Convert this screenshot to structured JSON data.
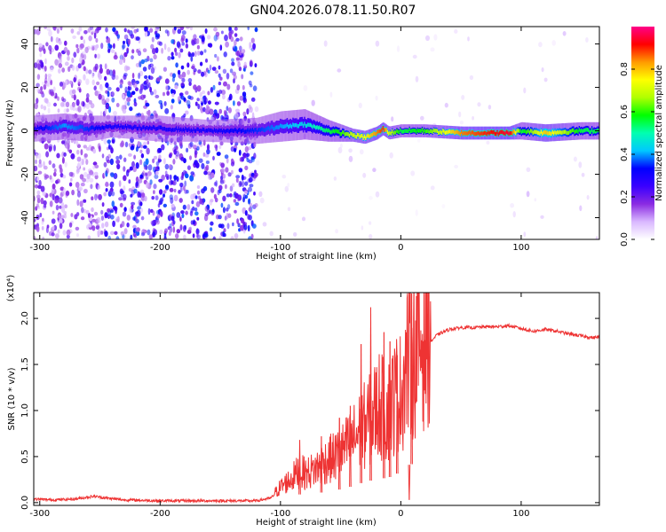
{
  "figure_title": "GN04.2026.078.11.50.R07",
  "chart_data": [
    {
      "type": "heatmap",
      "title": "GN04.2026.078.11.50.R07",
      "xlabel": "Height of straight line (km)",
      "ylabel": "Frequency (Hz)",
      "xlim": [
        -305,
        165
      ],
      "ylim": [
        -50,
        48
      ],
      "xticks": [
        -300,
        -200,
        -100,
        0,
        100
      ],
      "xtick_labels": [
        "-300",
        "-200",
        "-100",
        "0",
        "100"
      ],
      "yticks": [
        -40,
        -20,
        0,
        20,
        40
      ],
      "ytick_labels": [
        "-40",
        "-20",
        "0",
        "20",
        "40"
      ],
      "colorbar": {
        "label": "Normalized spectral amplitude",
        "range": [
          0,
          1
        ],
        "ticks": [
          0.0,
          0.2,
          0.4,
          0.6,
          0.8
        ],
        "tick_labels": [
          "0.0",
          "0.2",
          "0.4",
          "0.6",
          "0.8"
        ],
        "colormap": [
          "#ffffff",
          "#d9b8ff",
          "#8a2be2",
          "#3a00ff",
          "#0000ff",
          "#00c8ff",
          "#00ffb0",
          "#00ff00",
          "#b0ff00",
          "#ffff00",
          "#ff9a00",
          "#ff0000",
          "#ff0088"
        ]
      },
      "regions": [
        {
          "x": [
            -305,
            -245
          ],
          "amplitude": 0.15,
          "character": "sparse broadband noise"
        },
        {
          "x": [
            -245,
            -120
          ],
          "amplitude": 0.25,
          "character": "dense broadband noise"
        },
        {
          "x": [
            -120,
            165
          ],
          "amplitude": 0.05,
          "character": "faint background"
        }
      ],
      "ridge": {
        "name": "",
        "x": [
          -305,
          -280,
          -260,
          -240,
          -200,
          -160,
          -120,
          -100,
          -80,
          -60,
          -50,
          -40,
          -30,
          -20,
          -15,
          -10,
          0,
          20,
          50,
          90,
          100,
          120,
          150,
          165
        ],
        "y": [
          1,
          2,
          1,
          2,
          1,
          0,
          0,
          2,
          3,
          0,
          -1,
          -2,
          -3,
          -1,
          1,
          -1,
          0,
          0,
          -1,
          -1,
          0,
          -1,
          0,
          0
        ],
        "amplitude": [
          0.3,
          0.4,
          0.35,
          0.3,
          0.3,
          0.3,
          0.35,
          0.4,
          0.45,
          0.55,
          0.6,
          0.7,
          0.75,
          0.85,
          0.9,
          0.7,
          0.55,
          0.6,
          0.85,
          0.95,
          0.55,
          0.8,
          0.55,
          0.55
        ],
        "width_hz": [
          6,
          6,
          6,
          5,
          6,
          5,
          6,
          7,
          7,
          5,
          4,
          3,
          3,
          3,
          3,
          3,
          3,
          3,
          3,
          3,
          4,
          4,
          4,
          4
        ]
      }
    },
    {
      "type": "line",
      "xlabel": "Height of straight line (km)",
      "ylabel": "SNR (10 * v/v)",
      "yscale_label": "(x10⁴)",
      "xlim": [
        -305,
        165
      ],
      "ylim": [
        -0.03,
        2.28
      ],
      "xticks": [
        -300,
        -200,
        -100,
        0,
        100
      ],
      "xtick_labels": [
        "-300",
        "-200",
        "-100",
        "0",
        "100"
      ],
      "yticks": [
        0.0,
        0.5,
        1.0,
        1.5,
        2.0
      ],
      "ytick_labels": [
        "0.0",
        "0.5",
        "1.0",
        "1.5",
        "2.0"
      ],
      "color": "#ee3333",
      "series": [
        {
          "x": [
            -305,
            -290,
            -270,
            -255,
            -245,
            -230,
            -200,
            -150,
            -120,
            -108,
            -100,
            -92,
            -85,
            -78,
            -70,
            -62,
            -55,
            -48,
            -40,
            -32,
            -25,
            -18,
            -12,
            -8,
            -4,
            0,
            5,
            10,
            15,
            20,
            25,
            30,
            40,
            50,
            60,
            70,
            80,
            90,
            100,
            110,
            120,
            130,
            140,
            150,
            160,
            165
          ],
          "y": [
            0.04,
            0.03,
            0.04,
            0.07,
            0.05,
            0.03,
            0.02,
            0.02,
            0.02,
            0.05,
            0.15,
            0.22,
            0.3,
            0.28,
            0.33,
            0.4,
            0.44,
            0.5,
            0.6,
            0.72,
            0.8,
            0.95,
            0.85,
            0.95,
            1.05,
            1.05,
            1.35,
            1.4,
            1.5,
            1.62,
            1.75,
            1.82,
            1.88,
            1.9,
            1.9,
            1.91,
            1.91,
            1.92,
            1.89,
            1.86,
            1.88,
            1.86,
            1.83,
            1.81,
            1.79,
            1.8
          ]
        }
      ],
      "spikes": [
        {
          "x": -84,
          "y": 0.68
        },
        {
          "x": -66,
          "y": 0.72
        },
        {
          "x": -51,
          "y": 0.92
        },
        {
          "x": -42,
          "y": 1.05
        },
        {
          "x": -33,
          "y": 1.72
        },
        {
          "x": -25,
          "y": 2.12
        },
        {
          "x": -14,
          "y": 1.85
        },
        {
          "x": -9,
          "y": 1.75
        },
        {
          "x": -3,
          "y": 1.6
        },
        {
          "x": 7,
          "y": 0.03
        },
        {
          "x": 9,
          "y": 2.27
        }
      ]
    }
  ]
}
